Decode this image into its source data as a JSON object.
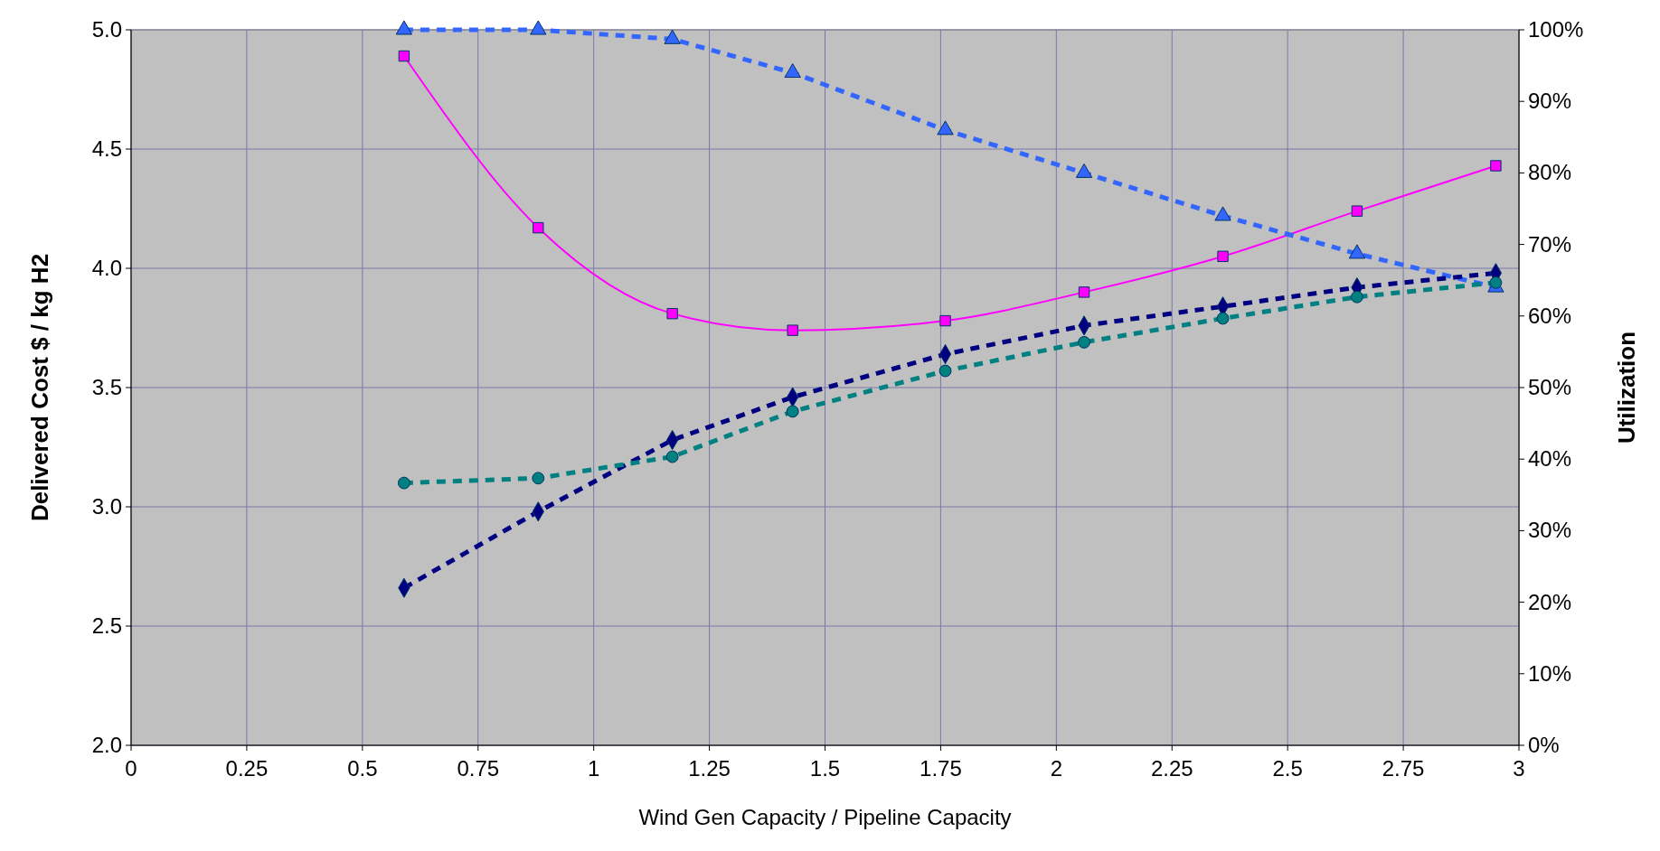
{
  "chart_data": {
    "type": "line",
    "xlabel": "Wind Gen Capacity / Pipeline Capacity",
    "ylabel": "Delivered Cost $ / kg H2",
    "y2label": "Utilization",
    "xlim": [
      0,
      3
    ],
    "xticks": [
      0,
      0.25,
      0.5,
      0.75,
      1,
      1.25,
      1.5,
      1.75,
      2,
      2.25,
      2.5,
      2.75,
      3
    ],
    "ylim": [
      2,
      5
    ],
    "yticks": [
      {
        "value": 2,
        "label": "2.0"
      },
      2.5,
      {
        "value": 3,
        "label": "3.0"
      },
      3.5,
      {
        "value": 4,
        "label": "4.0"
      },
      4.5,
      {
        "value": 5,
        "label": "5.0"
      }
    ],
    "y2lim": [
      0,
      100
    ],
    "y2ticks": [
      {
        "value": 0,
        "label": "0%"
      },
      {
        "value": 10,
        "label": "10%"
      },
      {
        "value": 20,
        "label": "20%"
      },
      {
        "value": 30,
        "label": "30%"
      },
      {
        "value": 40,
        "label": "40%"
      },
      {
        "value": 50,
        "label": "50%"
      },
      {
        "value": 60,
        "label": "60%"
      },
      {
        "value": 70,
        "label": "70%"
      },
      {
        "value": 80,
        "label": "80%"
      },
      {
        "value": 90,
        "label": "90%"
      },
      {
        "value": 100,
        "label": "100%"
      }
    ],
    "grid": true,
    "x": [
      0.59,
      0.88,
      1.17,
      1.43,
      1.76,
      2.06,
      2.36,
      2.65,
      2.95
    ],
    "series": [
      {
        "color": "#ff00ff",
        "marker": "square",
        "line_style": "solid",
        "values": [
          4.89,
          4.17,
          3.81,
          3.74,
          3.78,
          3.9,
          4.05,
          4.24,
          4.43
        ]
      },
      {
        "color": "#3366ff",
        "marker": "triangle",
        "line_style": "dashed",
        "axis": "y2",
        "values": [
          100,
          100,
          98.7,
          94,
          86,
          80,
          74,
          68.7,
          64
        ]
      },
      {
        "color": "#000080",
        "marker": "diamond",
        "line_style": "dashed",
        "values": [
          2.66,
          2.98,
          3.28,
          3.46,
          3.64,
          3.76,
          3.84,
          3.92,
          3.98
        ]
      },
      {
        "color": "#008080",
        "marker": "circle",
        "line_style": "dashed",
        "values": [
          3.1,
          3.12,
          3.21,
          3.4,
          3.57,
          3.69,
          3.79,
          3.88,
          3.94
        ]
      }
    ]
  }
}
